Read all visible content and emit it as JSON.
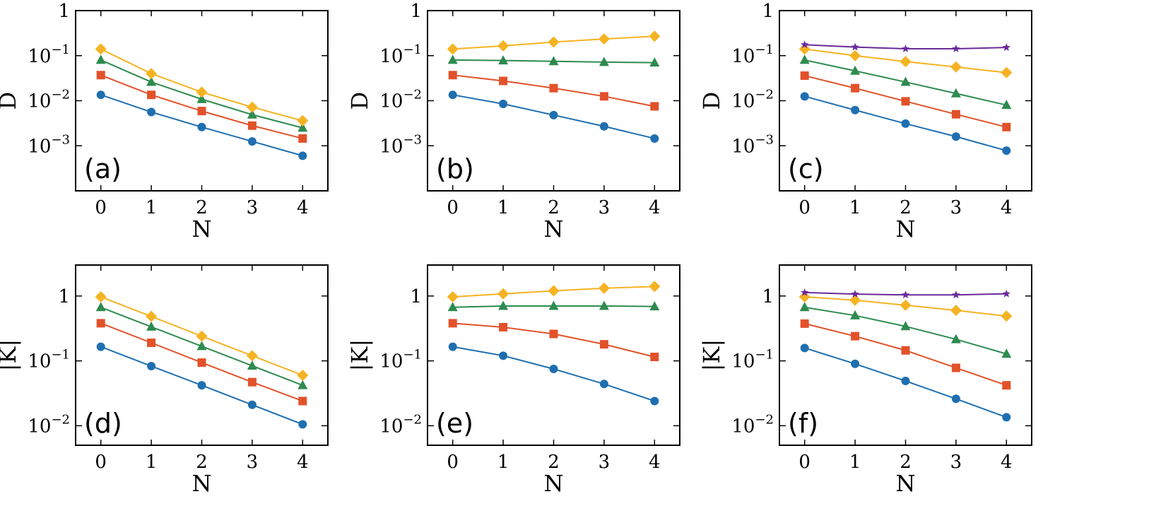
{
  "colors": {
    "blue": "#1f6fb0",
    "red": "#e2522a",
    "green": "#2e8b4f",
    "yellow": "#f5b323",
    "purple": "#6a2c9a"
  },
  "chart_data": [
    {
      "panel": "(a)",
      "type": "line",
      "ylabel": "D",
      "xlabel": "N",
      "yscale": "log",
      "ylim": [
        0.0001,
        1
      ],
      "xlim": [
        -0.5,
        4.5
      ],
      "x": [
        0,
        1,
        2,
        3,
        4
      ],
      "yticks": [
        {
          "v": 1,
          "base": "1",
          "exp": ""
        },
        {
          "v": 0.1,
          "base": "10",
          "exp": "−1"
        },
        {
          "v": 0.01,
          "base": "10",
          "exp": "−2"
        },
        {
          "v": 0.001,
          "base": "10",
          "exp": "−3"
        }
      ],
      "series": [
        {
          "marker": "circle",
          "color": "blue",
          "values": [
            0.0135,
            0.0056,
            0.0026,
            0.00125,
            0.0006
          ]
        },
        {
          "marker": "square",
          "color": "red",
          "values": [
            0.037,
            0.0135,
            0.0059,
            0.0028,
            0.00145
          ]
        },
        {
          "marker": "triangle",
          "color": "green",
          "values": [
            0.08,
            0.026,
            0.0108,
            0.0049,
            0.0025
          ]
        },
        {
          "marker": "diamond",
          "color": "yellow",
          "values": [
            0.14,
            0.04,
            0.0155,
            0.0072,
            0.0036
          ]
        }
      ]
    },
    {
      "panel": "(b)",
      "type": "line",
      "ylabel": "D",
      "xlabel": "N",
      "yscale": "log",
      "ylim": [
        0.0001,
        1
      ],
      "xlim": [
        -0.5,
        4.5
      ],
      "x": [
        0,
        1,
        2,
        3,
        4
      ],
      "yticks": [
        {
          "v": 1,
          "base": "1",
          "exp": ""
        },
        {
          "v": 0.1,
          "base": "10",
          "exp": "−1"
        },
        {
          "v": 0.01,
          "base": "10",
          "exp": "−2"
        },
        {
          "v": 0.001,
          "base": "10",
          "exp": "−3"
        }
      ],
      "series": [
        {
          "marker": "circle",
          "color": "blue",
          "values": [
            0.0135,
            0.0085,
            0.0048,
            0.0027,
            0.00145
          ]
        },
        {
          "marker": "square",
          "color": "red",
          "values": [
            0.037,
            0.0275,
            0.019,
            0.0125,
            0.0075
          ]
        },
        {
          "marker": "triangle",
          "color": "green",
          "values": [
            0.08,
            0.078,
            0.075,
            0.072,
            0.07
          ]
        },
        {
          "marker": "diamond",
          "color": "yellow",
          "values": [
            0.14,
            0.165,
            0.2,
            0.235,
            0.27
          ]
        }
      ]
    },
    {
      "panel": "(c)",
      "type": "line",
      "ylabel": "D",
      "xlabel": "N",
      "yscale": "log",
      "ylim": [
        0.0001,
        1
      ],
      "xlim": [
        -0.5,
        4.5
      ],
      "x": [
        0,
        1,
        2,
        3,
        4
      ],
      "yticks": [
        {
          "v": 1,
          "base": "1",
          "exp": ""
        },
        {
          "v": 0.1,
          "base": "10",
          "exp": "−1"
        },
        {
          "v": 0.01,
          "base": "10",
          "exp": "−2"
        },
        {
          "v": 0.001,
          "base": "10",
          "exp": "−3"
        }
      ],
      "series": [
        {
          "marker": "circle",
          "color": "blue",
          "values": [
            0.0125,
            0.0062,
            0.0031,
            0.0016,
            0.00078
          ]
        },
        {
          "marker": "square",
          "color": "red",
          "values": [
            0.036,
            0.019,
            0.0097,
            0.005,
            0.0026
          ]
        },
        {
          "marker": "triangle",
          "color": "green",
          "values": [
            0.08,
            0.046,
            0.026,
            0.0145,
            0.008
          ]
        },
        {
          "marker": "diamond",
          "color": "yellow",
          "values": [
            0.14,
            0.1,
            0.074,
            0.056,
            0.042
          ]
        },
        {
          "marker": "star",
          "color": "purple",
          "values": [
            0.175,
            0.155,
            0.142,
            0.142,
            0.152
          ]
        }
      ]
    },
    {
      "panel": "(d)",
      "type": "line",
      "ylabel": "|K|",
      "xlabel": "N",
      "yscale": "log",
      "ylim": [
        0.005,
        3
      ],
      "xlim": [
        -0.5,
        4.5
      ],
      "x": [
        0,
        1,
        2,
        3,
        4
      ],
      "yticks": [
        {
          "v": 1,
          "base": "1",
          "exp": ""
        },
        {
          "v": 0.1,
          "base": "10",
          "exp": "−1"
        },
        {
          "v": 0.01,
          "base": "10",
          "exp": "−2"
        }
      ],
      "series": [
        {
          "marker": "circle",
          "color": "blue",
          "values": [
            0.165,
            0.083,
            0.042,
            0.021,
            0.0105
          ]
        },
        {
          "marker": "square",
          "color": "red",
          "values": [
            0.38,
            0.19,
            0.094,
            0.047,
            0.024
          ]
        },
        {
          "marker": "triangle",
          "color": "green",
          "values": [
            0.67,
            0.335,
            0.168,
            0.084,
            0.042
          ]
        },
        {
          "marker": "diamond",
          "color": "yellow",
          "values": [
            0.97,
            0.485,
            0.24,
            0.12,
            0.06
          ]
        }
      ]
    },
    {
      "panel": "(e)",
      "type": "line",
      "ylabel": "|K|",
      "xlabel": "N",
      "yscale": "log",
      "ylim": [
        0.005,
        3
      ],
      "xlim": [
        -0.5,
        4.5
      ],
      "x": [
        0,
        1,
        2,
        3,
        4
      ],
      "yticks": [
        {
          "v": 1,
          "base": "1",
          "exp": ""
        },
        {
          "v": 0.1,
          "base": "10",
          "exp": "−1"
        },
        {
          "v": 0.01,
          "base": "10",
          "exp": "−2"
        }
      ],
      "series": [
        {
          "marker": "circle",
          "color": "blue",
          "values": [
            0.165,
            0.12,
            0.075,
            0.044,
            0.024
          ]
        },
        {
          "marker": "square",
          "color": "red",
          "values": [
            0.38,
            0.33,
            0.26,
            0.18,
            0.115
          ]
        },
        {
          "marker": "triangle",
          "color": "green",
          "values": [
            0.67,
            0.7,
            0.7,
            0.7,
            0.69
          ]
        },
        {
          "marker": "diamond",
          "color": "yellow",
          "values": [
            0.97,
            1.08,
            1.2,
            1.32,
            1.4
          ]
        }
      ]
    },
    {
      "panel": "(f)",
      "type": "line",
      "ylabel": "|K|",
      "xlabel": "N",
      "yscale": "log",
      "ylim": [
        0.005,
        3
      ],
      "xlim": [
        -0.5,
        4.5
      ],
      "x": [
        0,
        1,
        2,
        3,
        4
      ],
      "yticks": [
        {
          "v": 1,
          "base": "1",
          "exp": ""
        },
        {
          "v": 0.1,
          "base": "10",
          "exp": "−1"
        },
        {
          "v": 0.01,
          "base": "10",
          "exp": "−2"
        }
      ],
      "series": [
        {
          "marker": "circle",
          "color": "blue",
          "values": [
            0.158,
            0.09,
            0.049,
            0.026,
            0.0135
          ]
        },
        {
          "marker": "square",
          "color": "red",
          "values": [
            0.375,
            0.24,
            0.145,
            0.078,
            0.042
          ]
        },
        {
          "marker": "triangle",
          "color": "green",
          "values": [
            0.67,
            0.5,
            0.34,
            0.215,
            0.128
          ]
        },
        {
          "marker": "diamond",
          "color": "yellow",
          "values": [
            0.97,
            0.86,
            0.72,
            0.6,
            0.49
          ]
        },
        {
          "marker": "star",
          "color": "purple",
          "values": [
            1.13,
            1.07,
            1.04,
            1.04,
            1.08
          ]
        }
      ]
    }
  ]
}
